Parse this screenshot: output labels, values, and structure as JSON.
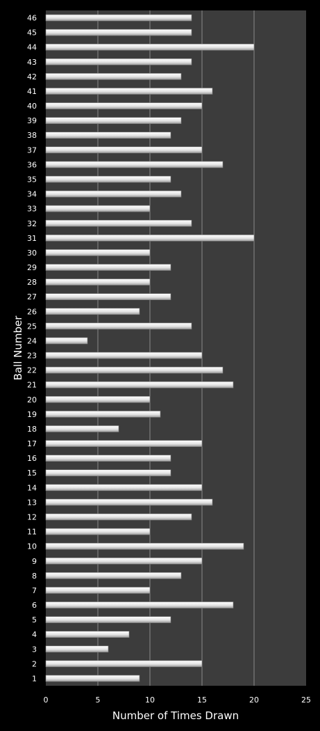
{
  "chart_data": {
    "type": "bar",
    "orientation": "horizontal",
    "title": "",
    "xlabel": "Number of Times Drawn",
    "ylabel": "Ball Number",
    "xlim": [
      0,
      25
    ],
    "xticks": [
      0,
      5,
      10,
      15,
      20,
      25
    ],
    "grid": true,
    "legend": "none",
    "categories": [
      "1",
      "2",
      "3",
      "4",
      "5",
      "6",
      "7",
      "8",
      "9",
      "10",
      "11",
      "12",
      "13",
      "14",
      "15",
      "16",
      "17",
      "18",
      "19",
      "20",
      "21",
      "22",
      "23",
      "24",
      "25",
      "26",
      "27",
      "28",
      "29",
      "30",
      "31",
      "32",
      "33",
      "34",
      "35",
      "36",
      "37",
      "38",
      "39",
      "40",
      "41",
      "42",
      "43",
      "44",
      "45",
      "46"
    ],
    "values": [
      9,
      15,
      6,
      8,
      12,
      18,
      10,
      13,
      15,
      19,
      10,
      14,
      16,
      15,
      12,
      12,
      15,
      7,
      11,
      10,
      18,
      17,
      15,
      4,
      14,
      9,
      12,
      10,
      12,
      10,
      20,
      14,
      10,
      13,
      12,
      17,
      15,
      12,
      13,
      15,
      16,
      13,
      14,
      20,
      14,
      14
    ],
    "colors": {
      "background": "#000000",
      "plot_area": "#3c3c3c",
      "bar_fill": "#e8e8e8",
      "grid": "#8a8a8a",
      "text": "#ffffff"
    }
  }
}
